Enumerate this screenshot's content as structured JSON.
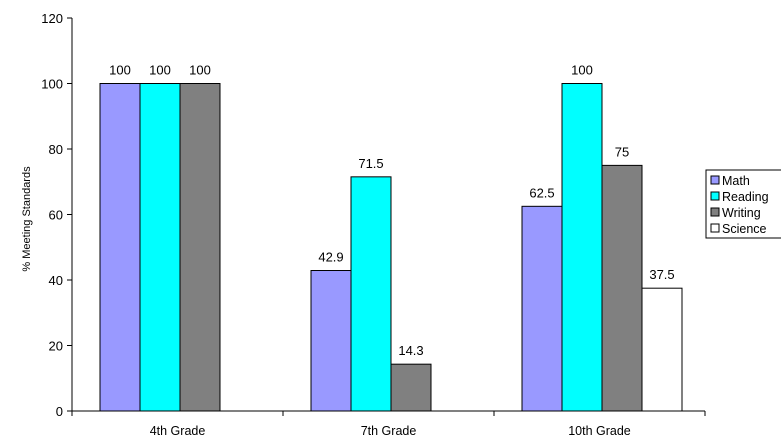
{
  "chart_data": {
    "type": "bar",
    "title": "",
    "xlabel": "",
    "ylabel": "% Meeting Standards",
    "ylim": [
      0,
      120
    ],
    "yticks": [
      0,
      20,
      40,
      60,
      80,
      100,
      120
    ],
    "grid": false,
    "legend_position": "right",
    "categories": [
      "4th Grade",
      "7th Grade",
      "10th Grade"
    ],
    "series": [
      {
        "name": "Math",
        "color": "#9999ff",
        "values": [
          100,
          42.9,
          62.5
        ],
        "labels": [
          "100",
          "42.9",
          "62.5"
        ]
      },
      {
        "name": "Reading",
        "color": "#00ffff",
        "values": [
          100,
          71.5,
          100
        ],
        "labels": [
          "100",
          "71.5",
          "100"
        ]
      },
      {
        "name": "Writing",
        "color": "#808080",
        "values": [
          100,
          14.3,
          75
        ],
        "labels": [
          "100",
          "14.3",
          "75"
        ]
      },
      {
        "name": "Science",
        "color": "#ffffff",
        "values": [
          null,
          null,
          37.5
        ],
        "labels": [
          "",
          "",
          "37.5"
        ]
      }
    ]
  }
}
